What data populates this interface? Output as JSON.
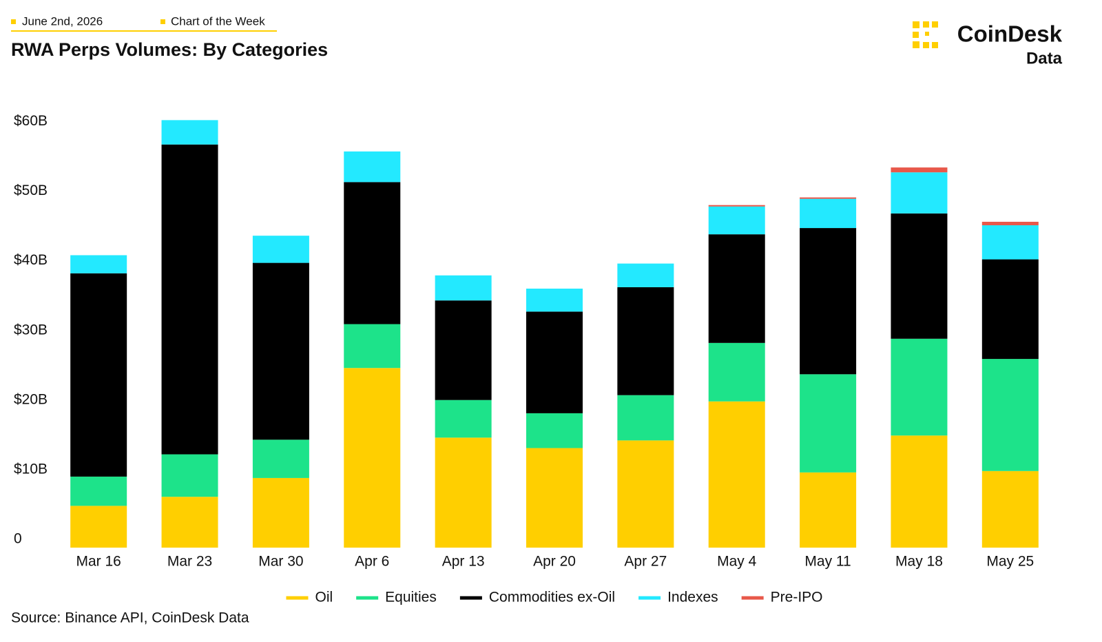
{
  "header": {
    "date": "June 2nd, 2026",
    "tag": "Chart of the Week",
    "brand": "CoinDesk",
    "brand_sub": "Data"
  },
  "source": "Source: Binance API, CoinDesk Data",
  "chart_data": {
    "type": "stacked-bar",
    "title": "RWA Perps Volumes: By Categories",
    "categories": [
      "Mar 16",
      "Mar 23",
      "Mar 30",
      "Apr 6",
      "Apr 13",
      "Apr 20",
      "Apr 27",
      "May 4",
      "May 11",
      "May 18",
      "May 25"
    ],
    "series": [
      {
        "name": "Oil",
        "color": "#FFCF00",
        "values": [
          6.0,
          7.3,
          10.0,
          25.8,
          15.8,
          14.3,
          15.4,
          21.0,
          10.8,
          16.1,
          11.0
        ]
      },
      {
        "name": "Equities",
        "color": "#1DE38A",
        "values": [
          4.2,
          6.1,
          5.5,
          6.3,
          5.4,
          5.0,
          6.5,
          8.4,
          14.1,
          13.9,
          16.1
        ]
      },
      {
        "name": "Commodities ex-Oil",
        "color": "#000000",
        "values": [
          29.2,
          44.5,
          25.4,
          20.4,
          14.3,
          14.6,
          15.5,
          15.6,
          21.0,
          18.0,
          14.3
        ]
      },
      {
        "name": "Indexes",
        "color": "#23E9FF",
        "values": [
          2.6,
          3.5,
          3.9,
          4.4,
          3.6,
          3.3,
          3.4,
          4.0,
          4.2,
          5.9,
          4.9
        ]
      },
      {
        "name": "Pre-IPO",
        "color": "#E8584A",
        "values": [
          0,
          0,
          0,
          0,
          0,
          0,
          0,
          0.2,
          0.2,
          0.7,
          0.5
        ]
      }
    ],
    "ylim": [
      0,
      65
    ],
    "yticks": [
      0,
      {
        "value": 10,
        "label": "$10B"
      },
      {
        "value": 20,
        "label": "$20B"
      },
      {
        "value": 30,
        "label": "$30B"
      },
      {
        "value": 40,
        "label": "$40B"
      },
      {
        "value": 50,
        "label": "$50B"
      },
      {
        "value": 60,
        "label": "$60B"
      }
    ],
    "grid": false,
    "legend": "bottom"
  }
}
